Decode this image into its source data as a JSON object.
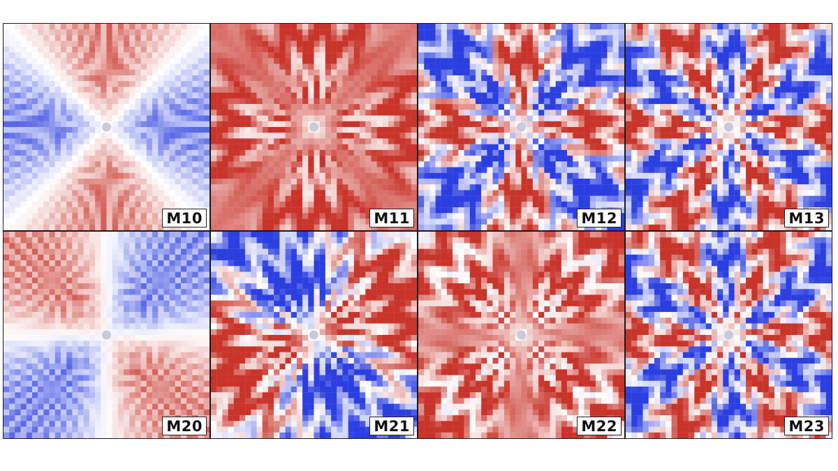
{
  "colors": {
    "positive": "#c8342a",
    "negative": "#2b3fe0",
    "neutral": "#ffffff"
  },
  "panels": [
    {
      "label": "M10",
      "m": 1,
      "n": 0,
      "pattern": "radial-streaks"
    },
    {
      "label": "M11",
      "m": 1,
      "n": 1,
      "pattern": "wavy-rings"
    },
    {
      "label": "M12",
      "m": 1,
      "n": 2,
      "pattern": "wavy-rings"
    },
    {
      "label": "M13",
      "m": 1,
      "n": 3,
      "pattern": "wavy-rings"
    },
    {
      "label": "M20",
      "m": 2,
      "n": 0,
      "pattern": "radial-streaks"
    },
    {
      "label": "M21",
      "m": 2,
      "n": 1,
      "pattern": "wavy-rings"
    },
    {
      "label": "M22",
      "m": 2,
      "n": 2,
      "pattern": "wavy-rings"
    },
    {
      "label": "M23",
      "m": 2,
      "n": 3,
      "pattern": "wavy-rings"
    }
  ]
}
